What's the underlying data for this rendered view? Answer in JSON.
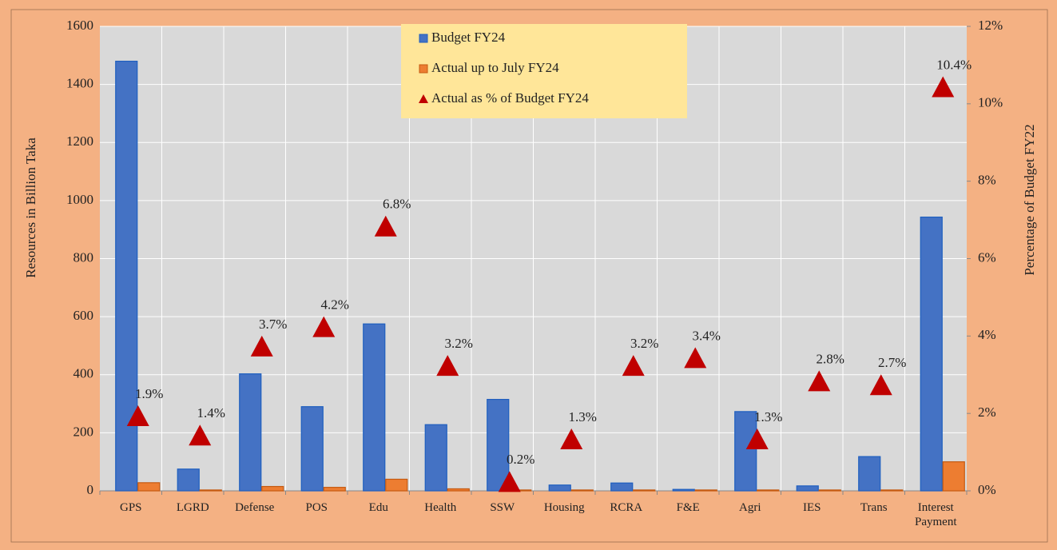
{
  "chart_data": {
    "type": "bar",
    "categories": [
      "GPS",
      "LGRD",
      "Defense",
      "POS",
      "Edu",
      "Health",
      "SSW",
      "Housing",
      "RCRA",
      "F&E",
      "Agri",
      "IES",
      "Trans",
      "Interest Payment"
    ],
    "series": [
      {
        "name": "Budget FY24",
        "color": "#4472C4",
        "values": [
          1480,
          75,
          403,
          290,
          575,
          228,
          315,
          20,
          27,
          5,
          273,
          17,
          118,
          943
        ]
      },
      {
        "name": "Actual up to July FY24",
        "color": "#ED7D31",
        "values": [
          28,
          3,
          15,
          12,
          40,
          7,
          3,
          3,
          3,
          3,
          3,
          3,
          3,
          100
        ]
      },
      {
        "name": "Actual as % of  Budget FY24",
        "color": "#C00000",
        "axis": "y2",
        "type": "scatter",
        "values": [
          1.9,
          1.4,
          3.7,
          4.2,
          6.8,
          3.2,
          0.2,
          1.3,
          3.2,
          3.4,
          1.3,
          2.8,
          2.7,
          10.4
        ],
        "value_labels": [
          "1.9%",
          "1.4%",
          "3.7%",
          "4.2%",
          "6.8%",
          "3.2%",
          "0.2%",
          "1.3%",
          "3.2%",
          "3.4%",
          "1.3%",
          "2.8%",
          "2.7%",
          "10.4%"
        ]
      }
    ],
    "y_label": "Resources in Billion Taka",
    "y2_label": "Percentage of Budget FY22",
    "ylim": [
      0,
      1600
    ],
    "yticks": [
      0,
      200,
      400,
      600,
      800,
      1000,
      1200,
      1400,
      1600
    ],
    "y2lim": [
      0,
      12
    ],
    "y2ticks": [
      {
        "value": 0,
        "label": "0%"
      },
      {
        "value": 2,
        "label": "2%"
      },
      {
        "value": 4,
        "label": "4%"
      },
      {
        "value": 6,
        "label": "6%"
      },
      {
        "value": 8,
        "label": "8%"
      },
      {
        "value": 10,
        "label": "10%"
      },
      {
        "value": 12,
        "label": "12%"
      }
    ],
    "grid": true,
    "legend": "top"
  }
}
